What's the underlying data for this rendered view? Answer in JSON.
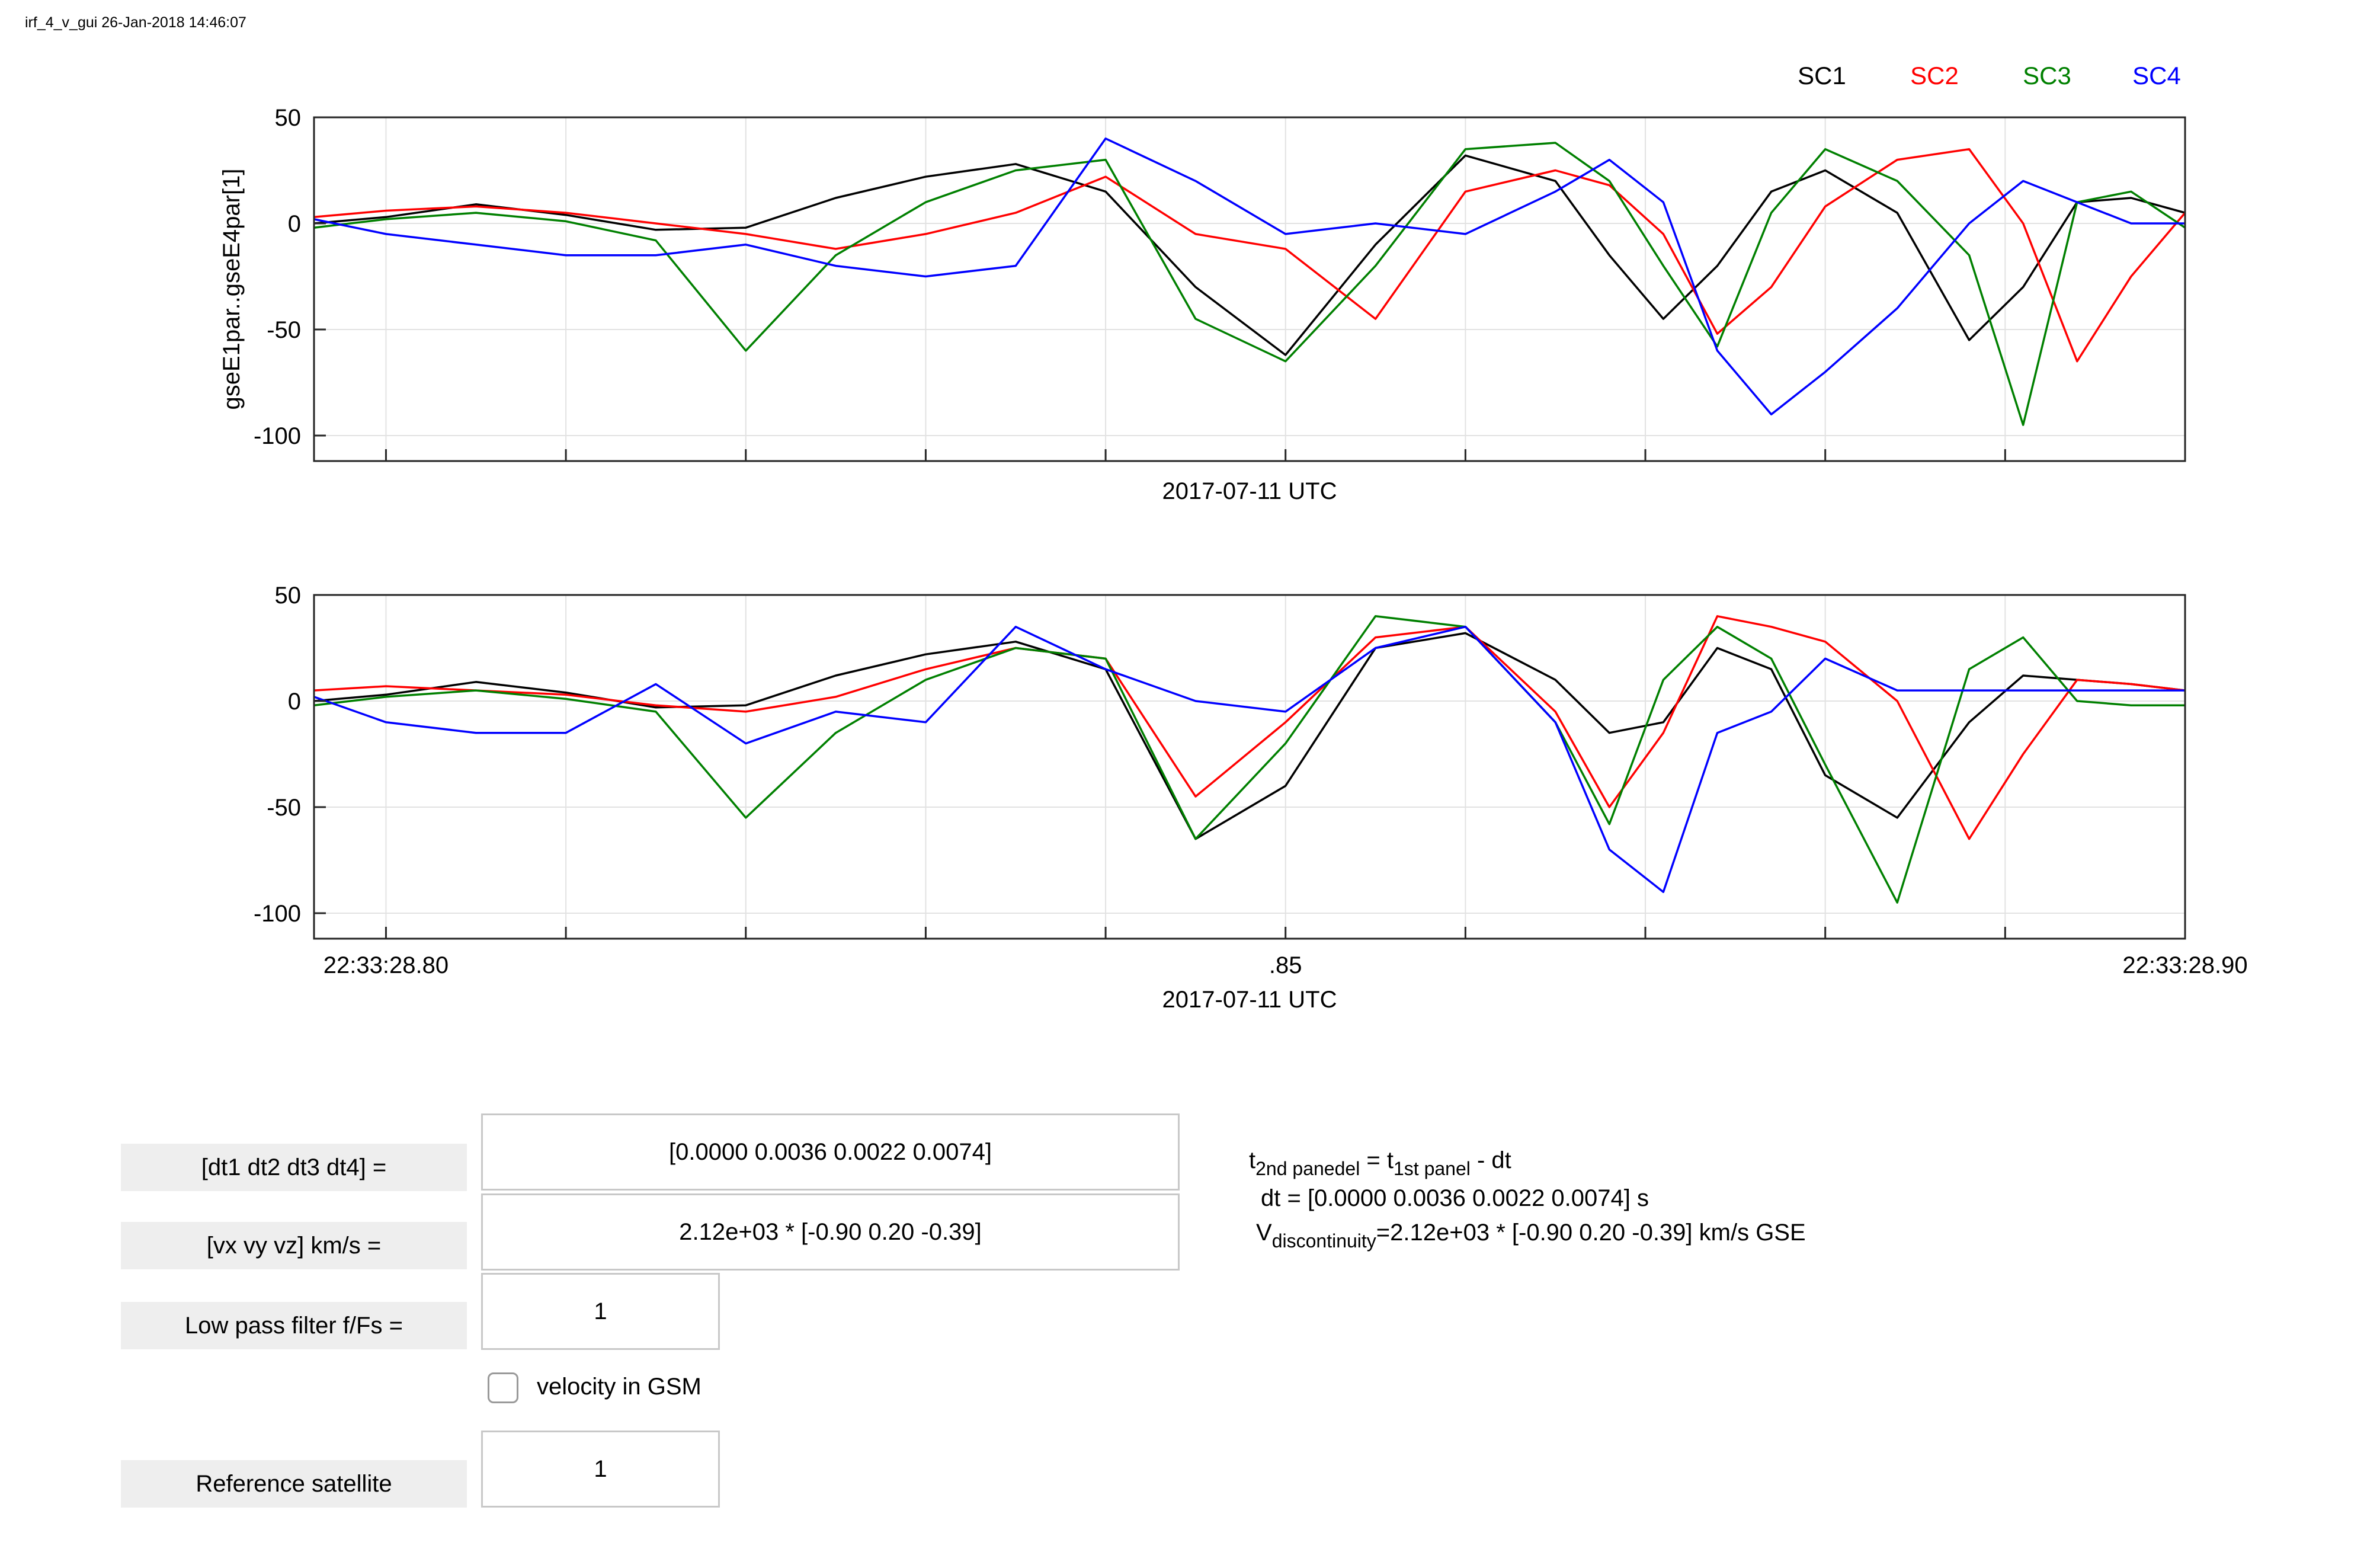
{
  "figure_title": "irf_4_v_gui 26-Jan-2018 14:46:07",
  "colors": {
    "sc1": "#000000",
    "sc2": "#ff0000",
    "sc3": "#008000",
    "sc4": "#0000ff",
    "grid": "#e2e2e2"
  },
  "chart_data": [
    {
      "type": "line",
      "ylabel": "gseE1par..gseE4par[1]",
      "xlabel": "2017-07-11 UTC",
      "ylim": [
        -112,
        50
      ],
      "xlim": [
        -0.004,
        0.1
      ],
      "yticks": [
        50,
        0,
        -50,
        -100
      ],
      "ytick_labels": [
        "50",
        "0",
        "-50",
        "-100"
      ],
      "xticks": [
        0.0,
        0.05,
        0.1
      ],
      "xtick_labels": [
        "",
        "",
        ""
      ],
      "legend": [
        "SC1",
        "SC2",
        "SC3",
        "SC4"
      ],
      "legend_position": "top-right",
      "grid": true,
      "series": [
        {
          "name": "SC1",
          "x": [
            -0.004,
            0,
            0.005,
            0.01,
            0.015,
            0.02,
            0.025,
            0.03,
            0.035,
            0.04,
            0.045,
            0.05,
            0.055,
            0.06,
            0.065,
            0.068,
            0.071,
            0.074,
            0.077,
            0.08,
            0.084,
            0.088,
            0.091,
            0.094,
            0.097,
            0.1
          ],
          "y": [
            0,
            3,
            9,
            4,
            -3,
            -2,
            12,
            22,
            28,
            15,
            -30,
            -62,
            -10,
            32,
            20,
            -15,
            -45,
            -20,
            15,
            25,
            5,
            -55,
            -30,
            10,
            12,
            5
          ]
        },
        {
          "name": "SC2",
          "x": [
            -0.004,
            0,
            0.005,
            0.01,
            0.015,
            0.02,
            0.025,
            0.03,
            0.035,
            0.04,
            0.045,
            0.05,
            0.055,
            0.06,
            0.065,
            0.068,
            0.071,
            0.074,
            0.077,
            0.08,
            0.084,
            0.088,
            0.091,
            0.094,
            0.097,
            0.1
          ],
          "y": [
            3,
            6,
            8,
            5,
            0,
            -5,
            -12,
            -5,
            5,
            22,
            -5,
            -12,
            -45,
            15,
            25,
            18,
            -5,
            -52,
            -30,
            8,
            30,
            35,
            0,
            -65,
            -25,
            5
          ]
        },
        {
          "name": "SC3",
          "x": [
            -0.004,
            0,
            0.005,
            0.01,
            0.015,
            0.02,
            0.025,
            0.03,
            0.035,
            0.04,
            0.045,
            0.05,
            0.055,
            0.06,
            0.065,
            0.068,
            0.071,
            0.074,
            0.077,
            0.08,
            0.084,
            0.088,
            0.091,
            0.094,
            0.097,
            0.1
          ],
          "y": [
            -2,
            2,
            5,
            1,
            -8,
            -60,
            -15,
            10,
            25,
            30,
            -45,
            -65,
            -20,
            35,
            38,
            20,
            -20,
            -58,
            5,
            35,
            20,
            -15,
            -95,
            10,
            15,
            -2
          ]
        },
        {
          "name": "SC4",
          "x": [
            -0.004,
            0,
            0.005,
            0.01,
            0.015,
            0.02,
            0.025,
            0.03,
            0.035,
            0.04,
            0.045,
            0.05,
            0.055,
            0.06,
            0.065,
            0.068,
            0.071,
            0.074,
            0.077,
            0.08,
            0.084,
            0.088,
            0.091,
            0.094,
            0.097,
            0.1
          ],
          "y": [
            2,
            -5,
            -10,
            -15,
            -15,
            -10,
            -20,
            -25,
            -20,
            40,
            20,
            -5,
            0,
            -5,
            15,
            30,
            10,
            -60,
            -90,
            -70,
            -40,
            0,
            20,
            10,
            0,
            0
          ]
        }
      ]
    },
    {
      "type": "line",
      "ylabel": "",
      "xlabel": "2017-07-11 UTC",
      "ylim": [
        -112,
        50
      ],
      "xlim": [
        -0.004,
        0.1
      ],
      "yticks": [
        50,
        0,
        -50,
        -100
      ],
      "ytick_labels": [
        "50",
        "0",
        "-50",
        "-100"
      ],
      "xticks": [
        0.0,
        0.05,
        0.1
      ],
      "xtick_labels": [
        "22:33:28.80",
        ".85",
        "22:33:28.90"
      ],
      "grid": true,
      "series": [
        {
          "name": "SC1",
          "x": [
            -0.004,
            0,
            0.005,
            0.01,
            0.015,
            0.02,
            0.025,
            0.03,
            0.035,
            0.04,
            0.045,
            0.05,
            0.055,
            0.06,
            0.065,
            0.068,
            0.071,
            0.074,
            0.077,
            0.08,
            0.084,
            0.088,
            0.091,
            0.094,
            0.097,
            0.1
          ],
          "y": [
            0,
            3,
            9,
            4,
            -3,
            -2,
            12,
            22,
            28,
            15,
            -65,
            -40,
            25,
            32,
            10,
            -15,
            -10,
            25,
            15,
            -35,
            -55,
            -10,
            12,
            10,
            8,
            5
          ]
        },
        {
          "name": "SC2",
          "x": [
            -0.004,
            0,
            0.005,
            0.01,
            0.015,
            0.02,
            0.025,
            0.03,
            0.035,
            0.04,
            0.045,
            0.05,
            0.055,
            0.06,
            0.065,
            0.068,
            0.071,
            0.074,
            0.077,
            0.08,
            0.084,
            0.088,
            0.091,
            0.094,
            0.097,
            0.1
          ],
          "y": [
            5,
            7,
            5,
            3,
            -2,
            -5,
            2,
            15,
            25,
            20,
            -45,
            -10,
            30,
            35,
            -5,
            -50,
            -15,
            40,
            35,
            28,
            0,
            -65,
            -25,
            10,
            8,
            5
          ]
        },
        {
          "name": "SC3",
          "x": [
            -0.004,
            0,
            0.005,
            0.01,
            0.015,
            0.02,
            0.025,
            0.03,
            0.035,
            0.04,
            0.045,
            0.05,
            0.055,
            0.06,
            0.065,
            0.068,
            0.071,
            0.074,
            0.077,
            0.08,
            0.084,
            0.088,
            0.091,
            0.094,
            0.097,
            0.1
          ],
          "y": [
            -2,
            2,
            5,
            1,
            -5,
            -55,
            -15,
            10,
            25,
            20,
            -65,
            -20,
            40,
            35,
            -10,
            -58,
            10,
            35,
            20,
            -30,
            -95,
            15,
            30,
            0,
            -2,
            -2
          ]
        },
        {
          "name": "SC4",
          "x": [
            -0.004,
            0,
            0.005,
            0.01,
            0.015,
            0.02,
            0.025,
            0.03,
            0.035,
            0.04,
            0.045,
            0.05,
            0.055,
            0.06,
            0.065,
            0.068,
            0.071,
            0.074,
            0.077,
            0.08,
            0.084,
            0.088,
            0.091,
            0.094,
            0.097,
            0.1
          ],
          "y": [
            2,
            -10,
            -15,
            -15,
            8,
            -20,
            -5,
            -10,
            35,
            15,
            0,
            -5,
            25,
            35,
            -10,
            -70,
            -90,
            -15,
            -5,
            20,
            5,
            5,
            5,
            5,
            5,
            5
          ]
        }
      ]
    }
  ],
  "controls": {
    "dt_label": "[dt1 dt2 dt3 dt4] =",
    "dt_value": "[0.0000    0.0036    0.0022    0.0074]",
    "v_label": "[vx vy vz] km/s =",
    "v_value": "2.12e+03 * [-0.90  0.20 -0.39]",
    "lpf_label": "Low pass filter f/Fs =",
    "lpf_value": "1",
    "gsm_label": "velocity in GSM",
    "ref_label": "Reference satellite",
    "ref_value": "1"
  },
  "info": {
    "t": "t",
    "t_sub1": "2nd panedel",
    "eq": " = t",
    "t_sub2": "1st panel",
    "minus_dt": " - dt",
    "dt_line": "dt = [0.0000   0.0036   0.0022   0.0074] s",
    "v": "V",
    "v_sub": "discontinuity",
    "v_rest": "=2.12e+03 * [-0.90  0.20 -0.39] km/s GSE"
  }
}
